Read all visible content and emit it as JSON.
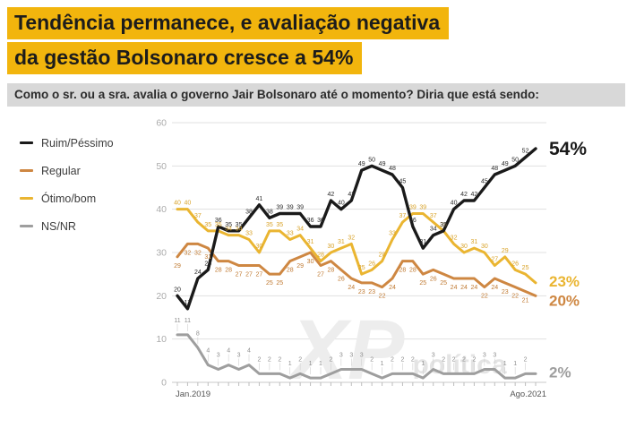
{
  "title": {
    "line1": "Tendência permanece, e avaliação negativa",
    "line2": "da gestão Bolsonaro cresce a 54%",
    "highlight_color": "#F2B50D"
  },
  "question": "Como o sr. ou a sra. avalia o governo Jair Bolsonaro até o momento? Diria que está sendo:",
  "watermark": {
    "logo": "XP",
    "text": "política"
  },
  "chart_data": {
    "type": "line",
    "title": "",
    "xlabel": "",
    "ylabel": "",
    "x_axis": {
      "start_label": "Jan.2019",
      "end_label": "Ago.2021"
    },
    "y_axis": {
      "ticks": [
        0,
        10,
        20,
        30,
        40,
        50,
        60
      ],
      "range": [
        0,
        60
      ]
    },
    "grid": true,
    "legend_position": "left",
    "series": [
      {
        "name": "Ruim/Péssimo",
        "color": "#1a1a1a",
        "label_color": "#2b2b2b",
        "end_label": "54%",
        "values": [
          20,
          17,
          24,
          26,
          36,
          35,
          35,
          38,
          41,
          38,
          39,
          39,
          39,
          36,
          36,
          42,
          40,
          42,
          49,
          50,
          49,
          48,
          45,
          36,
          31,
          34,
          35,
          40,
          42,
          42,
          45,
          48,
          49,
          50,
          52,
          54
        ]
      },
      {
        "name": "Regular",
        "color": "#CE8742",
        "label_color": "#C07A32",
        "end_label": "20%",
        "values": [
          29,
          32,
          32,
          31,
          28,
          28,
          27,
          27,
          27,
          25,
          25,
          28,
          29,
          30,
          27,
          28,
          26,
          24,
          23,
          23,
          22,
          24,
          28,
          28,
          25,
          26,
          25,
          24,
          24,
          24,
          22,
          24,
          23,
          22,
          21,
          20
        ]
      },
      {
        "name": "Ótimo/bom",
        "color": "#EAB531",
        "label_color": "#D9A32A",
        "end_label": "23%",
        "values": [
          40,
          40,
          37,
          35,
          35,
          34,
          34,
          33,
          30,
          35,
          35,
          33,
          34,
          31,
          28,
          30,
          31,
          32,
          25,
          26,
          28,
          33,
          37,
          39,
          39,
          37,
          35,
          32,
          30,
          31,
          30,
          27,
          29,
          26,
          25,
          23
        ]
      },
      {
        "name": "NS/NR",
        "color": "#9E9E9E",
        "label_color": "#8f8f8f",
        "end_label": "2%",
        "values": [
          11,
          11,
          8,
          4,
          3,
          4,
          3,
          4,
          2,
          2,
          2,
          1,
          2,
          1,
          1,
          2,
          3,
          3,
          3,
          2,
          1,
          2,
          2,
          2,
          1,
          3,
          2,
          2,
          2,
          2,
          3,
          3,
          1,
          1,
          2,
          2
        ]
      }
    ]
  }
}
